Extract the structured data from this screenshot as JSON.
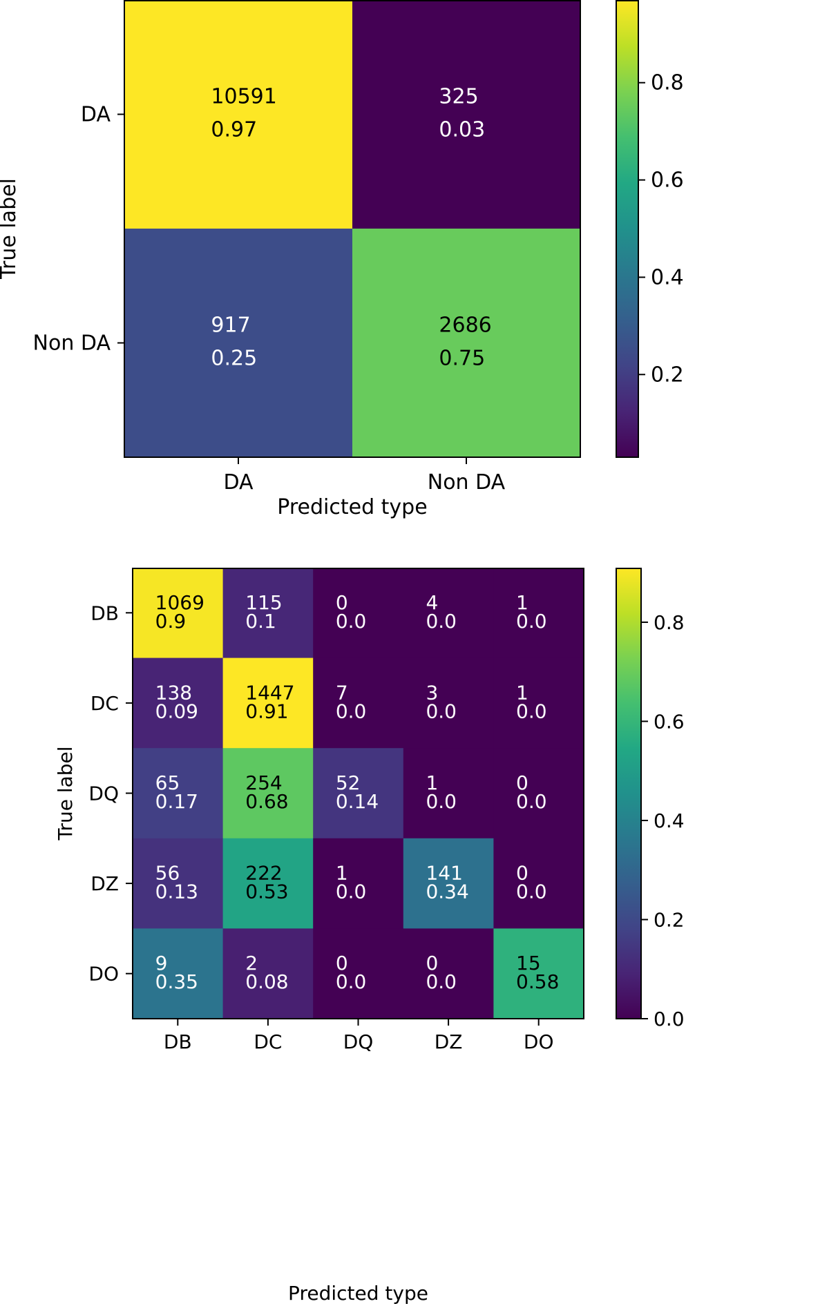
{
  "chart_data": [
    {
      "type": "heatmap",
      "title": "",
      "xlabel": "Predicted type",
      "ylabel": "True label",
      "row_labels": [
        "DA",
        "Non DA"
      ],
      "col_labels": [
        "DA",
        "Non DA"
      ],
      "counts": [
        [
          10591,
          325
        ],
        [
          917,
          2686
        ]
      ],
      "normalized": [
        [
          "0.97",
          "0.03"
        ],
        [
          "0.25",
          "0.75"
        ]
      ],
      "colorbar": {
        "range": [
          0.03,
          0.97
        ],
        "ticks": [
          "0.2",
          "0.4",
          "0.6",
          "0.8"
        ],
        "tick_values": [
          0.2,
          0.4,
          0.6,
          0.8
        ]
      }
    },
    {
      "type": "heatmap",
      "title": "",
      "xlabel": "Predicted type",
      "ylabel": "True label",
      "row_labels": [
        "DB",
        "DC",
        "DQ",
        "DZ",
        "DO"
      ],
      "col_labels": [
        "DB",
        "DC",
        "DQ",
        "DZ",
        "DO"
      ],
      "counts": [
        [
          1069,
          115,
          0,
          4,
          1
        ],
        [
          138,
          1447,
          7,
          3,
          1
        ],
        [
          65,
          254,
          52,
          1,
          0
        ],
        [
          56,
          222,
          1,
          141,
          0
        ],
        [
          9,
          2,
          0,
          0,
          15
        ]
      ],
      "normalized": [
        [
          "0.9",
          "0.1",
          "0.0",
          "0.0",
          "0.0"
        ],
        [
          "0.09",
          "0.91",
          "0.0",
          "0.0",
          "0.0"
        ],
        [
          "0.17",
          "0.68",
          "0.14",
          "0.0",
          "0.0"
        ],
        [
          "0.13",
          "0.53",
          "0.0",
          "0.34",
          "0.0"
        ],
        [
          "0.35",
          "0.08",
          "0.0",
          "0.0",
          "0.58"
        ]
      ],
      "colorbar": {
        "range": [
          0.0,
          0.91
        ],
        "ticks": [
          "0.0",
          "0.2",
          "0.4",
          "0.6",
          "0.8"
        ],
        "tick_values": [
          0.0,
          0.2,
          0.4,
          0.6,
          0.8
        ]
      }
    }
  ]
}
